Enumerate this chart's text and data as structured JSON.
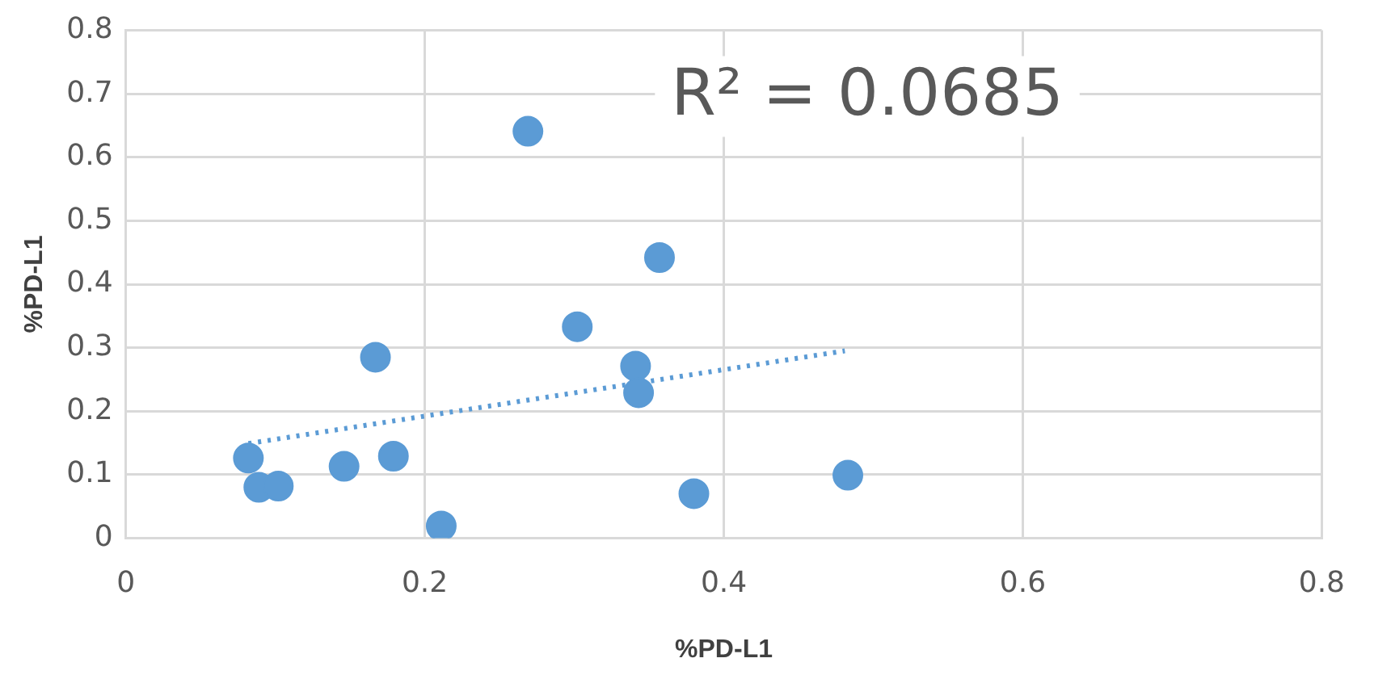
{
  "chart_data": {
    "type": "scatter",
    "xlabel": "%PD-L1",
    "ylabel": "%PD-L1",
    "annotations": [
      "R² = 0.0685"
    ],
    "series": [
      {
        "color": "#5b9bd5",
        "x": [
          0.082,
          0.089,
          0.102,
          0.146,
          0.167,
          0.179,
          0.211,
          0.269,
          0.302,
          0.341,
          0.343,
          0.357,
          0.38,
          0.483
        ],
        "values": [
          0.126,
          0.08,
          0.082,
          0.113,
          0.285,
          0.129,
          0.019,
          0.641,
          0.333,
          0.271,
          0.229,
          0.442,
          0.07,
          0.099
        ]
      },
      {
        "type": "line",
        "color": "#5b9bd5",
        "line_style": "dotted",
        "marker": "none",
        "x": [
          0.082,
          0.481
        ],
        "values": [
          0.149,
          0.295
        ]
      }
    ],
    "xlim": [
      0,
      0.8
    ],
    "xticks": [
      0,
      0.2,
      0.4,
      0.6,
      0.8
    ],
    "ylim": [
      0,
      0.8
    ],
    "yticks": [
      0,
      0.1,
      0.2,
      0.3,
      0.4,
      0.5,
      0.6,
      0.7,
      0.8
    ],
    "grid": true,
    "legend": false,
    "marker": "circle"
  }
}
